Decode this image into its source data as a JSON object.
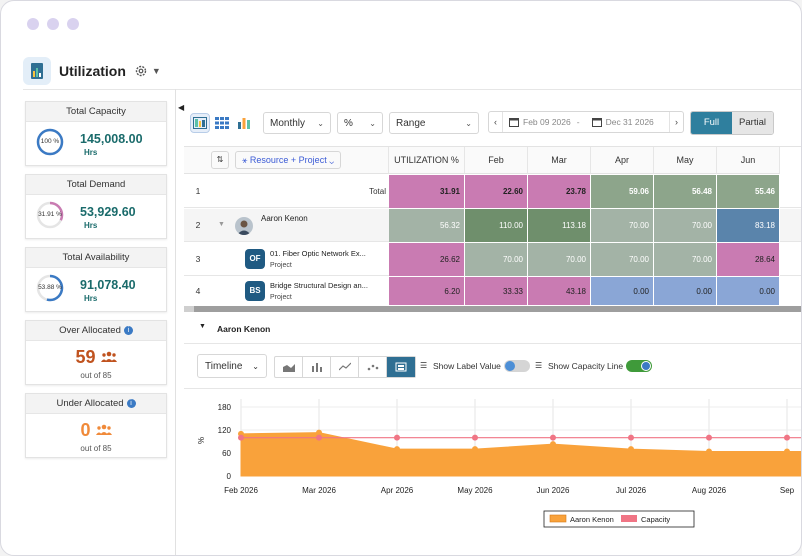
{
  "app": {
    "title": "Utilization"
  },
  "sidebar": {
    "total_capacity": {
      "label": "Total Capacity",
      "percent": "100 %",
      "percent_value": 100,
      "value": "145,008.00",
      "unit": "Hrs"
    },
    "total_demand": {
      "label": "Total Demand",
      "percent": "31.91 %",
      "percent_value": 31.91,
      "value": "53,929.60",
      "unit": "Hrs"
    },
    "total_availability": {
      "label": "Total Availability",
      "percent": "53.88 %",
      "percent_value": 53.88,
      "value": "91,078.40",
      "unit": "Hrs"
    },
    "over_allocated": {
      "label": "Over Allocated",
      "count": "59",
      "out_of": "out of 85"
    },
    "under_allocated": {
      "label": "Under Allocated",
      "count": "0",
      "out_of": "out of 85"
    }
  },
  "toolbar": {
    "period": "Monthly",
    "unit": "%",
    "range": "Range",
    "date_from": "Feb 09 2026",
    "date_sep": "-",
    "date_to": "Dec 31 2026",
    "full_label": "Full",
    "partial_label": "Partial"
  },
  "grid": {
    "group_by": "Resource + Project",
    "util_header": "UTILIZATION %",
    "months": [
      "Feb",
      "Mar",
      "Apr",
      "May",
      "Jun"
    ],
    "rows": [
      {
        "num": "1",
        "label": "Total",
        "util": "31.91",
        "values": [
          "22.60",
          "23.78",
          "59.06",
          "56.48",
          "55.46"
        ]
      },
      {
        "num": "2",
        "label": "Aaron Kenon",
        "util": "56.32",
        "values": [
          "110.00",
          "113.18",
          "70.00",
          "70.00",
          "83.18"
        ]
      },
      {
        "num": "3",
        "initials": "OF",
        "label": "01. Fiber Optic Network Ex...",
        "type": "Project",
        "util": "26.62",
        "values": [
          "70.00",
          "70.00",
          "70.00",
          "70.00",
          "28.64"
        ]
      },
      {
        "num": "4",
        "initials": "BS",
        "label": "Bridge Structural Design an...",
        "type": "Project",
        "util": "6.20",
        "values": [
          "33.33",
          "43.18",
          "0.00",
          "0.00",
          "0.00"
        ]
      }
    ]
  },
  "panel": {
    "title": "Aaron Kenon",
    "view": "Timeline",
    "show_label_value": "Show Label Value",
    "show_label_value_on": false,
    "show_capacity_line": "Show Capacity Line",
    "show_capacity_line_on": true
  },
  "chart_data": {
    "type": "area",
    "x": [
      "Feb 2026",
      "Mar 2026",
      "Apr 2026",
      "May 2026",
      "Jun 2026",
      "Jul 2026",
      "Aug 2026",
      "Sep"
    ],
    "series": [
      {
        "name": "Aaron Kenon",
        "type": "area",
        "color": "#f9a23b",
        "values": [
          110,
          113,
          70,
          70,
          83,
          70,
          64,
          64
        ]
      },
      {
        "name": "Capacity",
        "type": "line",
        "color": "#f07585",
        "values": [
          100,
          100,
          100,
          100,
          100,
          100,
          100,
          100
        ]
      }
    ],
    "ylabel": "%",
    "yticks": [
      "180",
      "120",
      "60",
      "0"
    ],
    "ylim": [
      0,
      180
    ],
    "grid": true,
    "legend": "bottom"
  },
  "colors": {
    "pink": "#c97bb2",
    "green_dark": "#6f8f6c",
    "green_mid": "#8da58b",
    "gray_green": "#a3b3a6",
    "blue_dark": "#5a84ab",
    "blue_light": "#8aa6d6",
    "accent": "#2f7f9e"
  }
}
